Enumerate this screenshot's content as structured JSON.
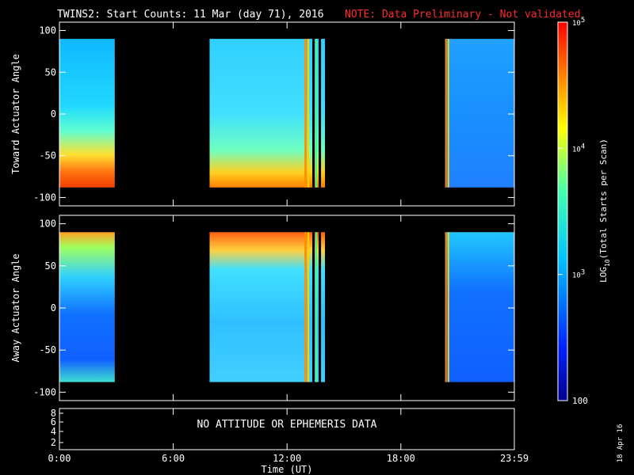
{
  "header": {
    "title": "TWINS2: Start Counts: 11 Mar (day  71), 2016",
    "note": "NOTE: Data Preliminary - Not validated",
    "note_color": "#ff2a2a"
  },
  "chart_data": [
    {
      "type": "heatmap",
      "ylabel": "Toward Actuator Angle",
      "ylim": [
        -110,
        110
      ],
      "yticks": [
        "100",
        "50",
        "0",
        "-50",
        "-100"
      ],
      "data_ranges": [
        {
          "start": "0:00",
          "end": "2:55"
        },
        {
          "start": "7:55",
          "end": "14:00"
        },
        {
          "start": "20:20",
          "end": "23:59"
        }
      ],
      "angle_range": [
        -88,
        90
      ]
    },
    {
      "type": "heatmap",
      "ylabel": "Away Actuator Angle",
      "ylim": [
        -110,
        110
      ],
      "yticks": [
        "100",
        "50",
        "0",
        "-50",
        "-100"
      ],
      "data_ranges": [
        {
          "start": "0:00",
          "end": "2:55"
        },
        {
          "start": "7:55",
          "end": "14:00"
        },
        {
          "start": "20:20",
          "end": "23:59"
        }
      ],
      "angle_range": [
        -88,
        90
      ]
    }
  ],
  "ephemeris_panel": {
    "yticks": [
      "8",
      "6",
      "4",
      "2"
    ],
    "message": "NO ATTITUDE OR EPHEMERIS DATA"
  },
  "x_axis": {
    "ticks": [
      "0:00",
      "6:00",
      "12:00",
      "18:00",
      "23:59"
    ],
    "label": "Time (UT)"
  },
  "colorbar": {
    "scale": "log",
    "range": [
      100,
      100000
    ],
    "tick_labels": [
      "10^5",
      "10^4",
      "10^3",
      "100"
    ],
    "label": "LOG10(Total Starts per Scan)"
  },
  "footer": {
    "date_stamp": "18 Apr 16"
  }
}
